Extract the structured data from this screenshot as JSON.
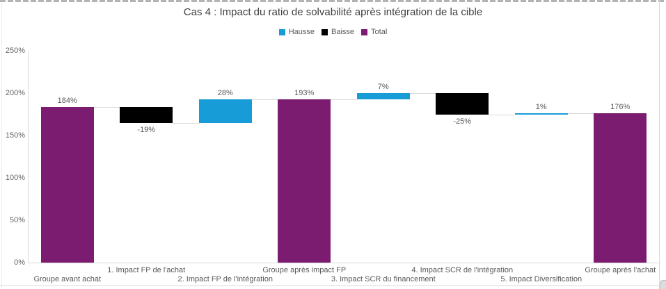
{
  "title": "Cas 4 : Impact du ratio de solvabilité après intégration de la cible",
  "colors": {
    "hausse": "#189CD8",
    "baisse": "#000000",
    "total": "#7B1C71",
    "axis_line": "#d9d9d9",
    "connector_line": "#dadada",
    "title_text": "#3f3f3f",
    "label_text": "#595959"
  },
  "legend": {
    "items": [
      {
        "label": "Hausse",
        "key": "hausse"
      },
      {
        "label": "Baisse",
        "key": "baisse"
      },
      {
        "label": "Total",
        "key": "total"
      }
    ]
  },
  "chart_data": {
    "type": "bar",
    "subtype": "waterfall",
    "title": "Cas 4 : Impact du ratio de solvabilité après intégration de la cible",
    "categories": [
      "Groupe avant achat",
      "1. Impact FP de l'achat",
      "2. Impact FP de l'intégration",
      "Groupe après impact FP",
      "3. Impact SCR du financement",
      "4. Impact SCR de l'intégration",
      "5. Impact Diversification",
      "Groupe après l'achat"
    ],
    "bars": [
      {
        "category": "Groupe avant achat",
        "kind": "total",
        "value": 184,
        "label": "184%",
        "start": 0,
        "end": 184
      },
      {
        "category": "1. Impact FP de l'achat",
        "kind": "baisse",
        "value": -19,
        "label": "-19%",
        "start": 184,
        "end": 165
      },
      {
        "category": "2. Impact FP de l'intégration",
        "kind": "hausse",
        "value": 28,
        "label": "28%",
        "start": 165,
        "end": 193
      },
      {
        "category": "Groupe après impact FP",
        "kind": "total",
        "value": 193,
        "label": "193%",
        "start": 0,
        "end": 193
      },
      {
        "category": "3. Impact SCR du financement",
        "kind": "hausse",
        "value": 7,
        "label": "7%",
        "start": 193,
        "end": 200
      },
      {
        "category": "4. Impact SCR de l'intégration",
        "kind": "baisse",
        "value": -25,
        "label": "-25%",
        "start": 200,
        "end": 175
      },
      {
        "category": "5. Impact Diversification",
        "kind": "hausse",
        "value": 1,
        "label": "1%",
        "start": 175,
        "end": 176
      },
      {
        "category": "Groupe après l'achat",
        "kind": "total",
        "value": 176,
        "label": "176%",
        "start": 0,
        "end": 176
      }
    ],
    "ylim": [
      0,
      250
    ],
    "y_ticks": [
      0,
      50,
      100,
      150,
      200,
      250
    ],
    "y_tick_labels": [
      "0%",
      "50%",
      "100%",
      "150%",
      "200%",
      "250%"
    ],
    "xlabel": "",
    "ylabel": "",
    "grid": false,
    "legend_position": "top-center"
  }
}
